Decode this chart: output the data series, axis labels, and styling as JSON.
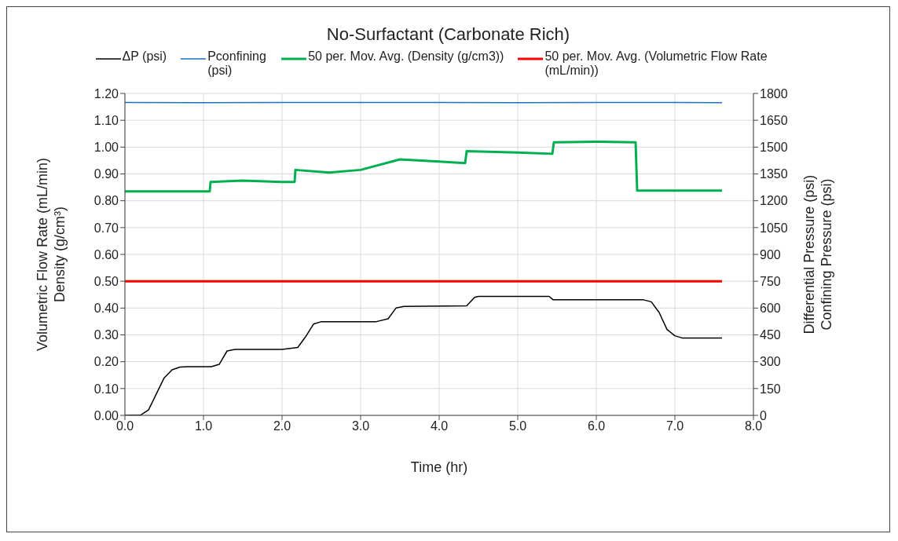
{
  "chart_data": {
    "type": "line",
    "title": "No-Surfactant (Carbonate Rich)",
    "xlabel": "Time (hr)",
    "ylabel": "Volumetric Flow Rate (mL/min)\nDensity (g/cm³)",
    "y2label": "Differential Pressure (psi)\nConfining Pressure (psi)",
    "xlim": [
      0,
      8
    ],
    "xticks": [
      {
        "value": 0,
        "label": "0.0"
      },
      {
        "value": 1,
        "label": "1.0"
      },
      {
        "value": 2,
        "label": "2.0"
      },
      {
        "value": 3,
        "label": "3.0"
      },
      {
        "value": 4,
        "label": "4.0"
      },
      {
        "value": 5,
        "label": "5.0"
      },
      {
        "value": 6,
        "label": "6.0"
      },
      {
        "value": 7,
        "label": "7.0"
      },
      {
        "value": 8,
        "label": "8.0"
      }
    ],
    "ylim": [
      0,
      1.2
    ],
    "yticks": [
      {
        "value": 0,
        "label": "0.00"
      },
      {
        "value": 0.1,
        "label": "0.10"
      },
      {
        "value": 0.2,
        "label": "0.20"
      },
      {
        "value": 0.3,
        "label": "0.30"
      },
      {
        "value": 0.4,
        "label": "0.40"
      },
      {
        "value": 0.5,
        "label": "0.50"
      },
      {
        "value": 0.6,
        "label": "0.60"
      },
      {
        "value": 0.7,
        "label": "0.70"
      },
      {
        "value": 0.8,
        "label": "0.80"
      },
      {
        "value": 0.9,
        "label": "0.90"
      },
      {
        "value": 1,
        "label": "1.00"
      },
      {
        "value": 1.1,
        "label": "1.10"
      },
      {
        "value": 1.2,
        "label": "1.20"
      }
    ],
    "y2lim": [
      0,
      1800
    ],
    "y2ticks": [
      0,
      150,
      300,
      450,
      600,
      750,
      900,
      1050,
      1200,
      1350,
      1500,
      1650,
      1800
    ],
    "grid": true,
    "legend": "top",
    "marker": "none",
    "series": [
      {
        "name": "ΔP (psi)",
        "color": "#000000",
        "axis": "y2",
        "x": [
          0,
          0.2,
          0.3,
          0.4,
          0.5,
          0.6,
          0.7,
          0.8,
          1.1,
          1.2,
          1.3,
          1.4,
          2.0,
          2.2,
          2.3,
          2.4,
          2.5,
          3.2,
          3.35,
          3.45,
          3.55,
          4.35,
          4.45,
          4.5,
          5.4,
          5.45,
          6.6,
          6.7,
          6.8,
          6.9,
          7.0,
          7.1,
          7.6
        ],
        "values": [
          0,
          2,
          30,
          120,
          210,
          255,
          270,
          272,
          272,
          285,
          360,
          369,
          369,
          380,
          440,
          510,
          524,
          524,
          540,
          600,
          609,
          612,
          660,
          665,
          665,
          646,
          646,
          635,
          575,
          480,
          445,
          432,
          432
        ]
      },
      {
        "name": "Pconfining (psi)",
        "color": "#1f6fc0",
        "axis": "y2",
        "x": [
          0,
          1,
          2,
          3,
          4,
          5,
          6,
          7,
          7.6
        ],
        "values": [
          1750,
          1748,
          1750,
          1749,
          1750,
          1748,
          1750,
          1749,
          1748
        ]
      },
      {
        "name": "50 per. Mov. Avg. (Density (g/cm3))",
        "color": "#00b050",
        "axis": "y",
        "x": [
          0,
          1.08,
          1.09,
          1.5,
          2.0,
          2.16,
          2.17,
          2.6,
          3.0,
          3.5,
          4.0,
          4.33,
          4.35,
          5.0,
          5.44,
          5.46,
          6.0,
          6.5,
          6.52,
          7.0,
          7.6
        ],
        "values": [
          0.835,
          0.835,
          0.87,
          0.875,
          0.87,
          0.87,
          0.915,
          0.905,
          0.915,
          0.954,
          0.946,
          0.94,
          0.985,
          0.98,
          0.975,
          1.018,
          1.02,
          1.018,
          0.838,
          0.838,
          0.838
        ]
      },
      {
        "name": "50 per. Mov. Avg. (Volumetric Flow Rate (mL/min))",
        "color": "#ff0000",
        "axis": "y",
        "x": [
          0,
          1,
          2,
          3,
          4,
          5,
          6,
          7,
          7.6
        ],
        "values": [
          0.5,
          0.5,
          0.5,
          0.5,
          0.5,
          0.5,
          0.5,
          0.5,
          0.5
        ]
      }
    ]
  }
}
